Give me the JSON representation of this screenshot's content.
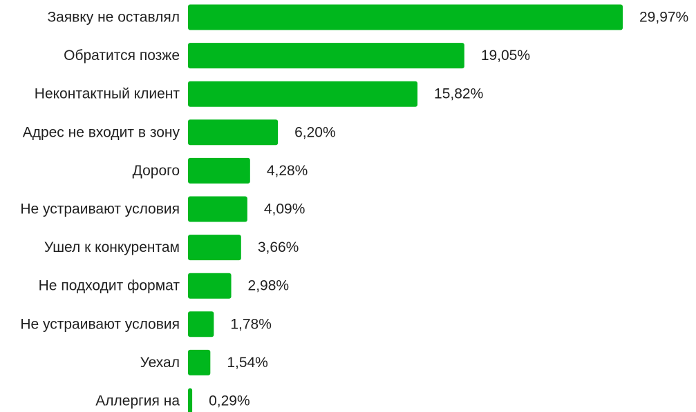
{
  "chart_data": {
    "type": "bar",
    "orientation": "horizontal",
    "categories": [
      "Заявку не оставлял",
      "Обратится позже",
      "Неконтактный клиент",
      "Адрес не входит в зону",
      "Дорого",
      "Не устраивают условия",
      "Ушел к конкурентам",
      "Не подходит формат",
      "Не устраивают условия",
      "Уехал",
      "Аллергия на"
    ],
    "values": [
      29.97,
      19.05,
      15.82,
      6.2,
      4.28,
      4.09,
      3.66,
      2.98,
      1.78,
      1.54,
      0.29
    ],
    "value_labels": [
      "29,97%",
      "19,05%",
      "15,82%",
      "6,20%",
      "4,28%",
      "4,09%",
      "3,66%",
      "2,98%",
      "1,78%",
      "1,54%",
      "0,29%"
    ],
    "title": "",
    "xlabel": "",
    "ylabel": "",
    "grid": false,
    "legend": false,
    "bar_color": "#00b71d"
  }
}
